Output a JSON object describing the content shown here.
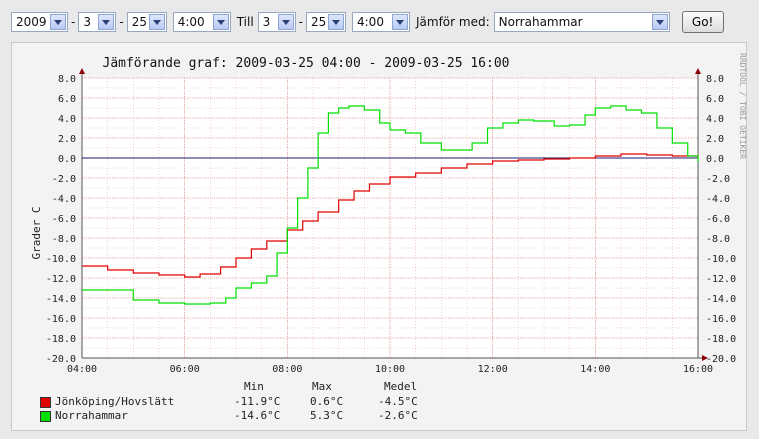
{
  "controls": {
    "year_from": "2009",
    "month_from": "3",
    "day_from": "25",
    "time_from": "4:00",
    "till_label": "Till",
    "month_to": "3",
    "day_to": "25",
    "time_to": "4:00",
    "compare_label": "Jämför med:",
    "compare_station": "Norrahammar",
    "go_label": "Go!"
  },
  "chart_data": {
    "type": "line",
    "title": "Jämförande graf: 2009-03-25 04:00 - 2009-03-25 16:00",
    "ylabel": "Grader C",
    "watermark": "RRDTOOL / TOBI OETIKER",
    "x_ticks": [
      "04:00",
      "06:00",
      "08:00",
      "10:00",
      "12:00",
      "14:00",
      "16:00"
    ],
    "y_ticks": [
      "8.0",
      "6.0",
      "4.0",
      "2.0",
      "0.0",
      "-2.0",
      "-4.0",
      "-6.0",
      "-8.0",
      "-10.0",
      "-12.0",
      "-14.0",
      "-16.0",
      "-18.0",
      "-20.0"
    ],
    "ylim": [
      -20,
      8
    ],
    "grid": true,
    "series": [
      {
        "name": "Jönköping/Hovslätt",
        "color": "#e00000",
        "x": [
          4.0,
          4.5,
          5.0,
          5.5,
          6.0,
          6.3,
          6.7,
          7.0,
          7.3,
          7.6,
          8.0,
          8.3,
          8.6,
          9.0,
          9.3,
          9.6,
          10.0,
          10.5,
          11.0,
          11.5,
          12.0,
          12.5,
          13.0,
          13.5,
          14.0,
          14.5,
          15.0,
          15.5,
          16.0
        ],
        "y": [
          -10.8,
          -11.2,
          -11.5,
          -11.7,
          -11.9,
          -11.6,
          -10.9,
          -10.0,
          -9.1,
          -8.3,
          -7.2,
          -6.3,
          -5.4,
          -4.2,
          -3.3,
          -2.6,
          -1.9,
          -1.5,
          -1.0,
          -0.6,
          -0.3,
          -0.2,
          -0.1,
          0.0,
          0.2,
          0.4,
          0.3,
          0.2,
          -0.1
        ]
      },
      {
        "name": "Norrahammar",
        "color": "#00e000",
        "x": [
          4.0,
          4.5,
          5.0,
          5.5,
          6.0,
          6.5,
          6.8,
          7.0,
          7.3,
          7.6,
          7.8,
          8.0,
          8.2,
          8.4,
          8.6,
          8.8,
          9.0,
          9.2,
          9.5,
          9.8,
          10.0,
          10.3,
          10.6,
          11.0,
          11.3,
          11.6,
          11.9,
          12.2,
          12.5,
          12.8,
          13.2,
          13.5,
          13.8,
          14.0,
          14.3,
          14.6,
          14.9,
          15.2,
          15.5,
          15.8,
          16.0
        ],
        "y": [
          -13.2,
          -13.2,
          -14.2,
          -14.5,
          -14.6,
          -14.5,
          -14.0,
          -13.0,
          -12.5,
          -11.8,
          -9.5,
          -7.0,
          -4.0,
          -1.0,
          2.5,
          4.5,
          5.0,
          5.2,
          4.8,
          3.5,
          2.8,
          2.5,
          1.5,
          0.8,
          0.8,
          1.5,
          3.0,
          3.5,
          3.8,
          3.7,
          3.2,
          3.3,
          4.3,
          5.0,
          5.2,
          4.8,
          4.5,
          3.0,
          1.5,
          0.2,
          -0.4
        ]
      }
    ],
    "legend": {
      "headers": [
        "Min",
        "Max",
        "Medel"
      ],
      "rows": [
        {
          "name": "Jönköping/Hovslätt",
          "color": "#e00000",
          "min": "-11.9°C",
          "max": "0.6°C",
          "mean": "-4.5°C"
        },
        {
          "name": "Norrahammar",
          "color": "#00e000",
          "min": "-14.6°C",
          "max": "5.3°C",
          "mean": "-2.6°C"
        }
      ]
    }
  }
}
